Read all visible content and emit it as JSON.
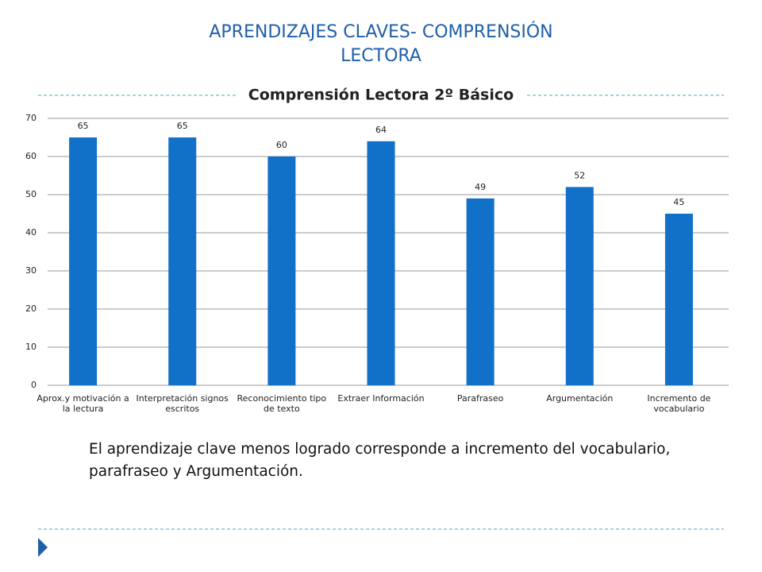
{
  "slide_title": [
    "APRENDIZAJES  CLAVES- COMPRENSIÓN",
    "LECTORA"
  ],
  "chart_data": {
    "type": "bar",
    "title": "Comprensión Lectora 2º Básico",
    "categories": [
      "Aprox.y motivación a la lectura",
      "Interpretación signos escritos",
      "Reconocimiento tipo de texto",
      "Extraer Información",
      "Parafraseo",
      "Argumentación",
      "Incremento de vocabulario"
    ],
    "values": [
      65,
      65,
      60,
      64,
      49,
      52,
      45
    ],
    "color": "#1170c8",
    "ylim": [
      0,
      70
    ],
    "yticks": [
      0,
      10,
      20,
      30,
      40,
      50,
      60,
      70
    ],
    "grid": true,
    "data_labels": true
  },
  "body_text": "El aprendizaje clave menos logrado corresponde a incremento del vocabulario, parafraseo y Argumentación."
}
